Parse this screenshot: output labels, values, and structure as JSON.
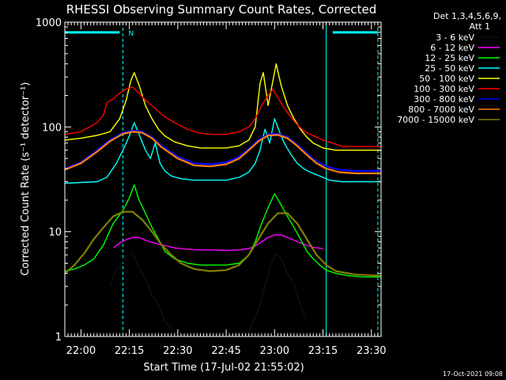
{
  "chart_data": {
    "type": "line",
    "title": "RHESSI Observing Summary Count Rates, Corrected",
    "xlabel": "Start Time (17-Jul-02 21:55:02)",
    "ylabel": "Corrected Count Rate (s⁻¹ detector⁻¹)",
    "x_unit": "minutes after 21:55:02",
    "xlim": [
      0,
      98
    ],
    "ylim": [
      1,
      1000
    ],
    "log_y": true,
    "x_ticks": [
      {
        "t": 5,
        "label": "22:00"
      },
      {
        "t": 20,
        "label": "22:15"
      },
      {
        "t": 35,
        "label": "22:30"
      },
      {
        "t": 50,
        "label": "22:45"
      },
      {
        "t": 65,
        "label": "23:00"
      },
      {
        "t": 80,
        "label": "23:15"
      },
      {
        "t": 95,
        "label": "23:30"
      }
    ],
    "y_ticks": [
      {
        "v": 1,
        "label": "1"
      },
      {
        "v": 10,
        "label": "10"
      },
      {
        "v": 100,
        "label": "100"
      },
      {
        "v": 1000,
        "label": "1000"
      }
    ],
    "detectors": "Det 1,3,4,5,6,9,",
    "attenuator": "Att 1",
    "markers": {
      "color": "#00ffff",
      "night_label": "N",
      "dashed_at": [
        18,
        97
      ],
      "solid_at": [
        81
      ],
      "bars": [
        [
          0,
          17
        ],
        [
          83,
          97
        ]
      ],
      "bar_level": 800
    },
    "series": [
      {
        "name": "3 - 6 keV",
        "color": "#000000",
        "x": [
          14,
          16,
          17,
          18,
          19,
          21,
          23,
          25,
          27,
          29,
          31,
          34,
          37,
          40,
          46,
          52,
          57,
          60,
          62,
          64,
          65.5,
          67,
          69,
          71,
          73,
          75
        ],
        "y": [
          3.0,
          4.4,
          4.7,
          5.2,
          5.9,
          6.2,
          4.5,
          3.5,
          2.5,
          2.0,
          1.4,
          1.1,
          1.0,
          1.0,
          1.0,
          1.0,
          1.1,
          1.8,
          3.0,
          5.0,
          6.2,
          5.5,
          4.0,
          3.2,
          2.0,
          1.4
        ]
      },
      {
        "name": "6 - 12 keV",
        "color": "#ff00ff",
        "x": [
          15,
          17,
          19,
          21,
          23,
          25,
          27,
          29,
          31,
          34,
          38,
          42,
          46,
          50,
          54,
          57,
          59,
          61,
          63,
          65,
          67,
          69,
          71,
          73,
          75,
          77,
          80
        ],
        "y": [
          7.0,
          7.8,
          8.4,
          8.8,
          8.8,
          8.3,
          7.9,
          7.6,
          7.4,
          7.0,
          6.8,
          6.7,
          6.7,
          6.6,
          6.7,
          6.9,
          7.3,
          8.0,
          8.8,
          9.3,
          9.3,
          8.8,
          8.3,
          7.8,
          7.4,
          7.1,
          6.9
        ]
      },
      {
        "name": "12 - 25 keV",
        "color": "#00ff00",
        "x": [
          0,
          3,
          6,
          9,
          12,
          15,
          18,
          20,
          21.5,
          23,
          25,
          27,
          29,
          31,
          34,
          38,
          42,
          46,
          50,
          54,
          57,
          59,
          61,
          63,
          65,
          67,
          69,
          71,
          73,
          75,
          77,
          79,
          81,
          84,
          88,
          92,
          96,
          98
        ],
        "y": [
          4.2,
          4.4,
          4.8,
          5.5,
          7.5,
          12,
          16,
          21,
          28,
          20,
          15,
          11,
          8.5,
          6.5,
          5.5,
          5.0,
          4.8,
          4.8,
          4.8,
          5.0,
          6.0,
          8.0,
          12,
          17,
          23,
          18,
          14,
          11,
          8.5,
          6.5,
          5.5,
          4.8,
          4.3,
          4.0,
          3.8,
          3.7,
          3.7,
          3.7
        ]
      },
      {
        "name": "25 - 50 keV",
        "color": "#00ffff",
        "x": [
          0,
          5,
          10,
          13,
          16,
          18,
          20,
          21.5,
          23,
          25,
          26.5,
          28,
          29.5,
          31,
          33,
          36,
          40,
          45,
          50,
          54,
          57,
          59,
          60.5,
          62,
          63.5,
          65,
          66.5,
          68,
          70,
          72,
          74,
          76,
          78,
          80,
          82,
          86,
          90,
          94,
          98
        ],
        "y": [
          29,
          29.5,
          30,
          33,
          45,
          60,
          82,
          110,
          85,
          60,
          50,
          70,
          45,
          38,
          34,
          32,
          31,
          31,
          31,
          33,
          37,
          45,
          60,
          95,
          70,
          120,
          90,
          70,
          55,
          45,
          40,
          37,
          35,
          33,
          31,
          30,
          30,
          30,
          30
        ]
      },
      {
        "name": "50 - 100 keV",
        "color": "#ffff00",
        "x": [
          0,
          5,
          10,
          14,
          17,
          19,
          20.5,
          21.5,
          23,
          24,
          25,
          27,
          29,
          31,
          34,
          38,
          42,
          46,
          50,
          54,
          57,
          59,
          60.5,
          61.5,
          63,
          65.5,
          67,
          69,
          71,
          73,
          75,
          77,
          80,
          84,
          90,
          98
        ],
        "y": [
          75,
          78,
          83,
          90,
          120,
          180,
          280,
          330,
          250,
          200,
          160,
          120,
          95,
          82,
          72,
          66,
          63,
          63,
          63,
          66,
          75,
          100,
          260,
          330,
          160,
          400,
          250,
          160,
          120,
          95,
          80,
          70,
          63,
          60,
          60,
          60
        ]
      },
      {
        "name": "100 - 300 keV",
        "color": "#ff0000",
        "x": [
          0,
          5,
          10,
          12,
          13,
          15,
          17,
          19,
          21,
          23,
          25,
          27,
          29,
          31,
          34,
          38,
          42,
          46,
          50,
          54,
          57,
          59,
          61,
          63,
          64.5,
          66,
          68,
          70,
          72,
          74,
          76,
          78,
          80,
          83,
          86,
          90,
          98
        ],
        "y": [
          85,
          90,
          110,
          130,
          170,
          185,
          210,
          230,
          240,
          210,
          180,
          160,
          140,
          125,
          110,
          95,
          87,
          85,
          85,
          90,
          100,
          120,
          160,
          200,
          230,
          190,
          150,
          125,
          105,
          92,
          85,
          80,
          75,
          70,
          65,
          65,
          65
        ]
      },
      {
        "name": "300 - 800 keV",
        "color": "#0000ff",
        "x": [
          0,
          5,
          10,
          14,
          18,
          21,
          24,
          27,
          30,
          35,
          40,
          45,
          50,
          54,
          57,
          60,
          63,
          66,
          69,
          72,
          75,
          78,
          81,
          85,
          90,
          98
        ],
        "y": [
          40,
          46,
          60,
          75,
          88,
          92,
          90,
          80,
          66,
          52,
          45,
          44,
          46,
          52,
          62,
          75,
          85,
          86,
          80,
          68,
          56,
          47,
          42,
          39,
          38,
          38
        ]
      },
      {
        "name": "800 - 7000 keV",
        "color": "#ff8000",
        "x": [
          0,
          5,
          10,
          14,
          18,
          21,
          24,
          27,
          30,
          35,
          40,
          45,
          50,
          54,
          57,
          60,
          63,
          66,
          69,
          72,
          75,
          78,
          81,
          85,
          90,
          98
        ],
        "y": [
          39,
          45,
          58,
          73,
          86,
          90,
          88,
          78,
          64,
          50,
          43,
          42,
          44,
          50,
          60,
          73,
          83,
          84,
          78,
          66,
          54,
          45,
          40,
          37,
          36,
          36
        ]
      },
      {
        "name": "7000 - 15000 keV",
        "color": "#808000",
        "x": [
          0,
          3,
          6,
          9,
          12,
          15,
          18,
          21,
          24,
          27,
          30,
          33,
          36,
          40,
          45,
          50,
          54,
          57,
          60,
          63,
          66,
          69,
          72,
          75,
          78,
          81,
          84,
          90,
          98
        ],
        "y": [
          4.0,
          4.8,
          6.2,
          8.5,
          11,
          14,
          15.5,
          15.5,
          13,
          10,
          7.5,
          6.0,
          5.0,
          4.4,
          4.2,
          4.3,
          4.8,
          6.0,
          8.5,
          12,
          15,
          15,
          12,
          8.5,
          6.0,
          4.8,
          4.2,
          3.9,
          3.8
        ]
      }
    ]
  },
  "footer": {
    "timestamp": "17-Oct-2021 09:08"
  }
}
